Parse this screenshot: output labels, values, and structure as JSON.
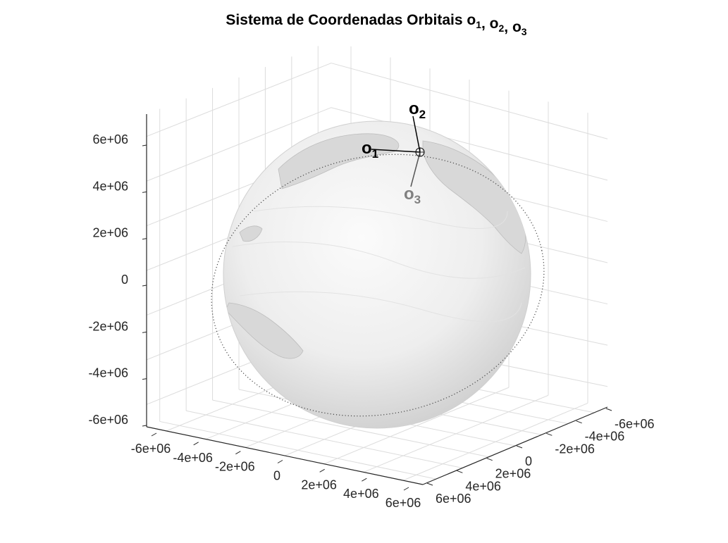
{
  "chart_data": {
    "type": "3d-surface",
    "title_parts": [
      {
        "text": "Sistema de Coordenadas Orbitais o",
        "sub": false
      },
      {
        "text": "1",
        "sub": true
      },
      {
        "text": ", o",
        "sub": false
      },
      {
        "text": "2",
        "sub": true
      },
      {
        "text": ", o",
        "sub": false
      },
      {
        "text": "3",
        "sub": true
      }
    ],
    "x_ticks": [
      "-6e+06",
      "-4e+06",
      "-2e+06",
      "0",
      "2e+06",
      "4e+06",
      "6e+06"
    ],
    "y_ticks": [
      "-6e+06",
      "-4e+06",
      "-2e+06",
      "0",
      "2e+06",
      "4e+06",
      "6e+06"
    ],
    "z_ticks": [
      "6e+06",
      "4e+06",
      "2e+06",
      "0",
      "-2e+06",
      "-4e+06",
      "-6e+06"
    ],
    "xlim": [
      -6000000,
      6000000
    ],
    "ylim": [
      -6000000,
      6000000
    ],
    "zlim": [
      -6000000,
      6000000
    ],
    "grid": true,
    "surface": "Earth globe (grayscale texture)",
    "orbit": "dotted circular orbit around the globe",
    "vectors": [
      {
        "base": "o",
        "sub": "1",
        "color": "#000000"
      },
      {
        "base": "o",
        "sub": "2",
        "color": "#000000"
      },
      {
        "base": "o",
        "sub": "3",
        "color": "#808080"
      }
    ]
  }
}
